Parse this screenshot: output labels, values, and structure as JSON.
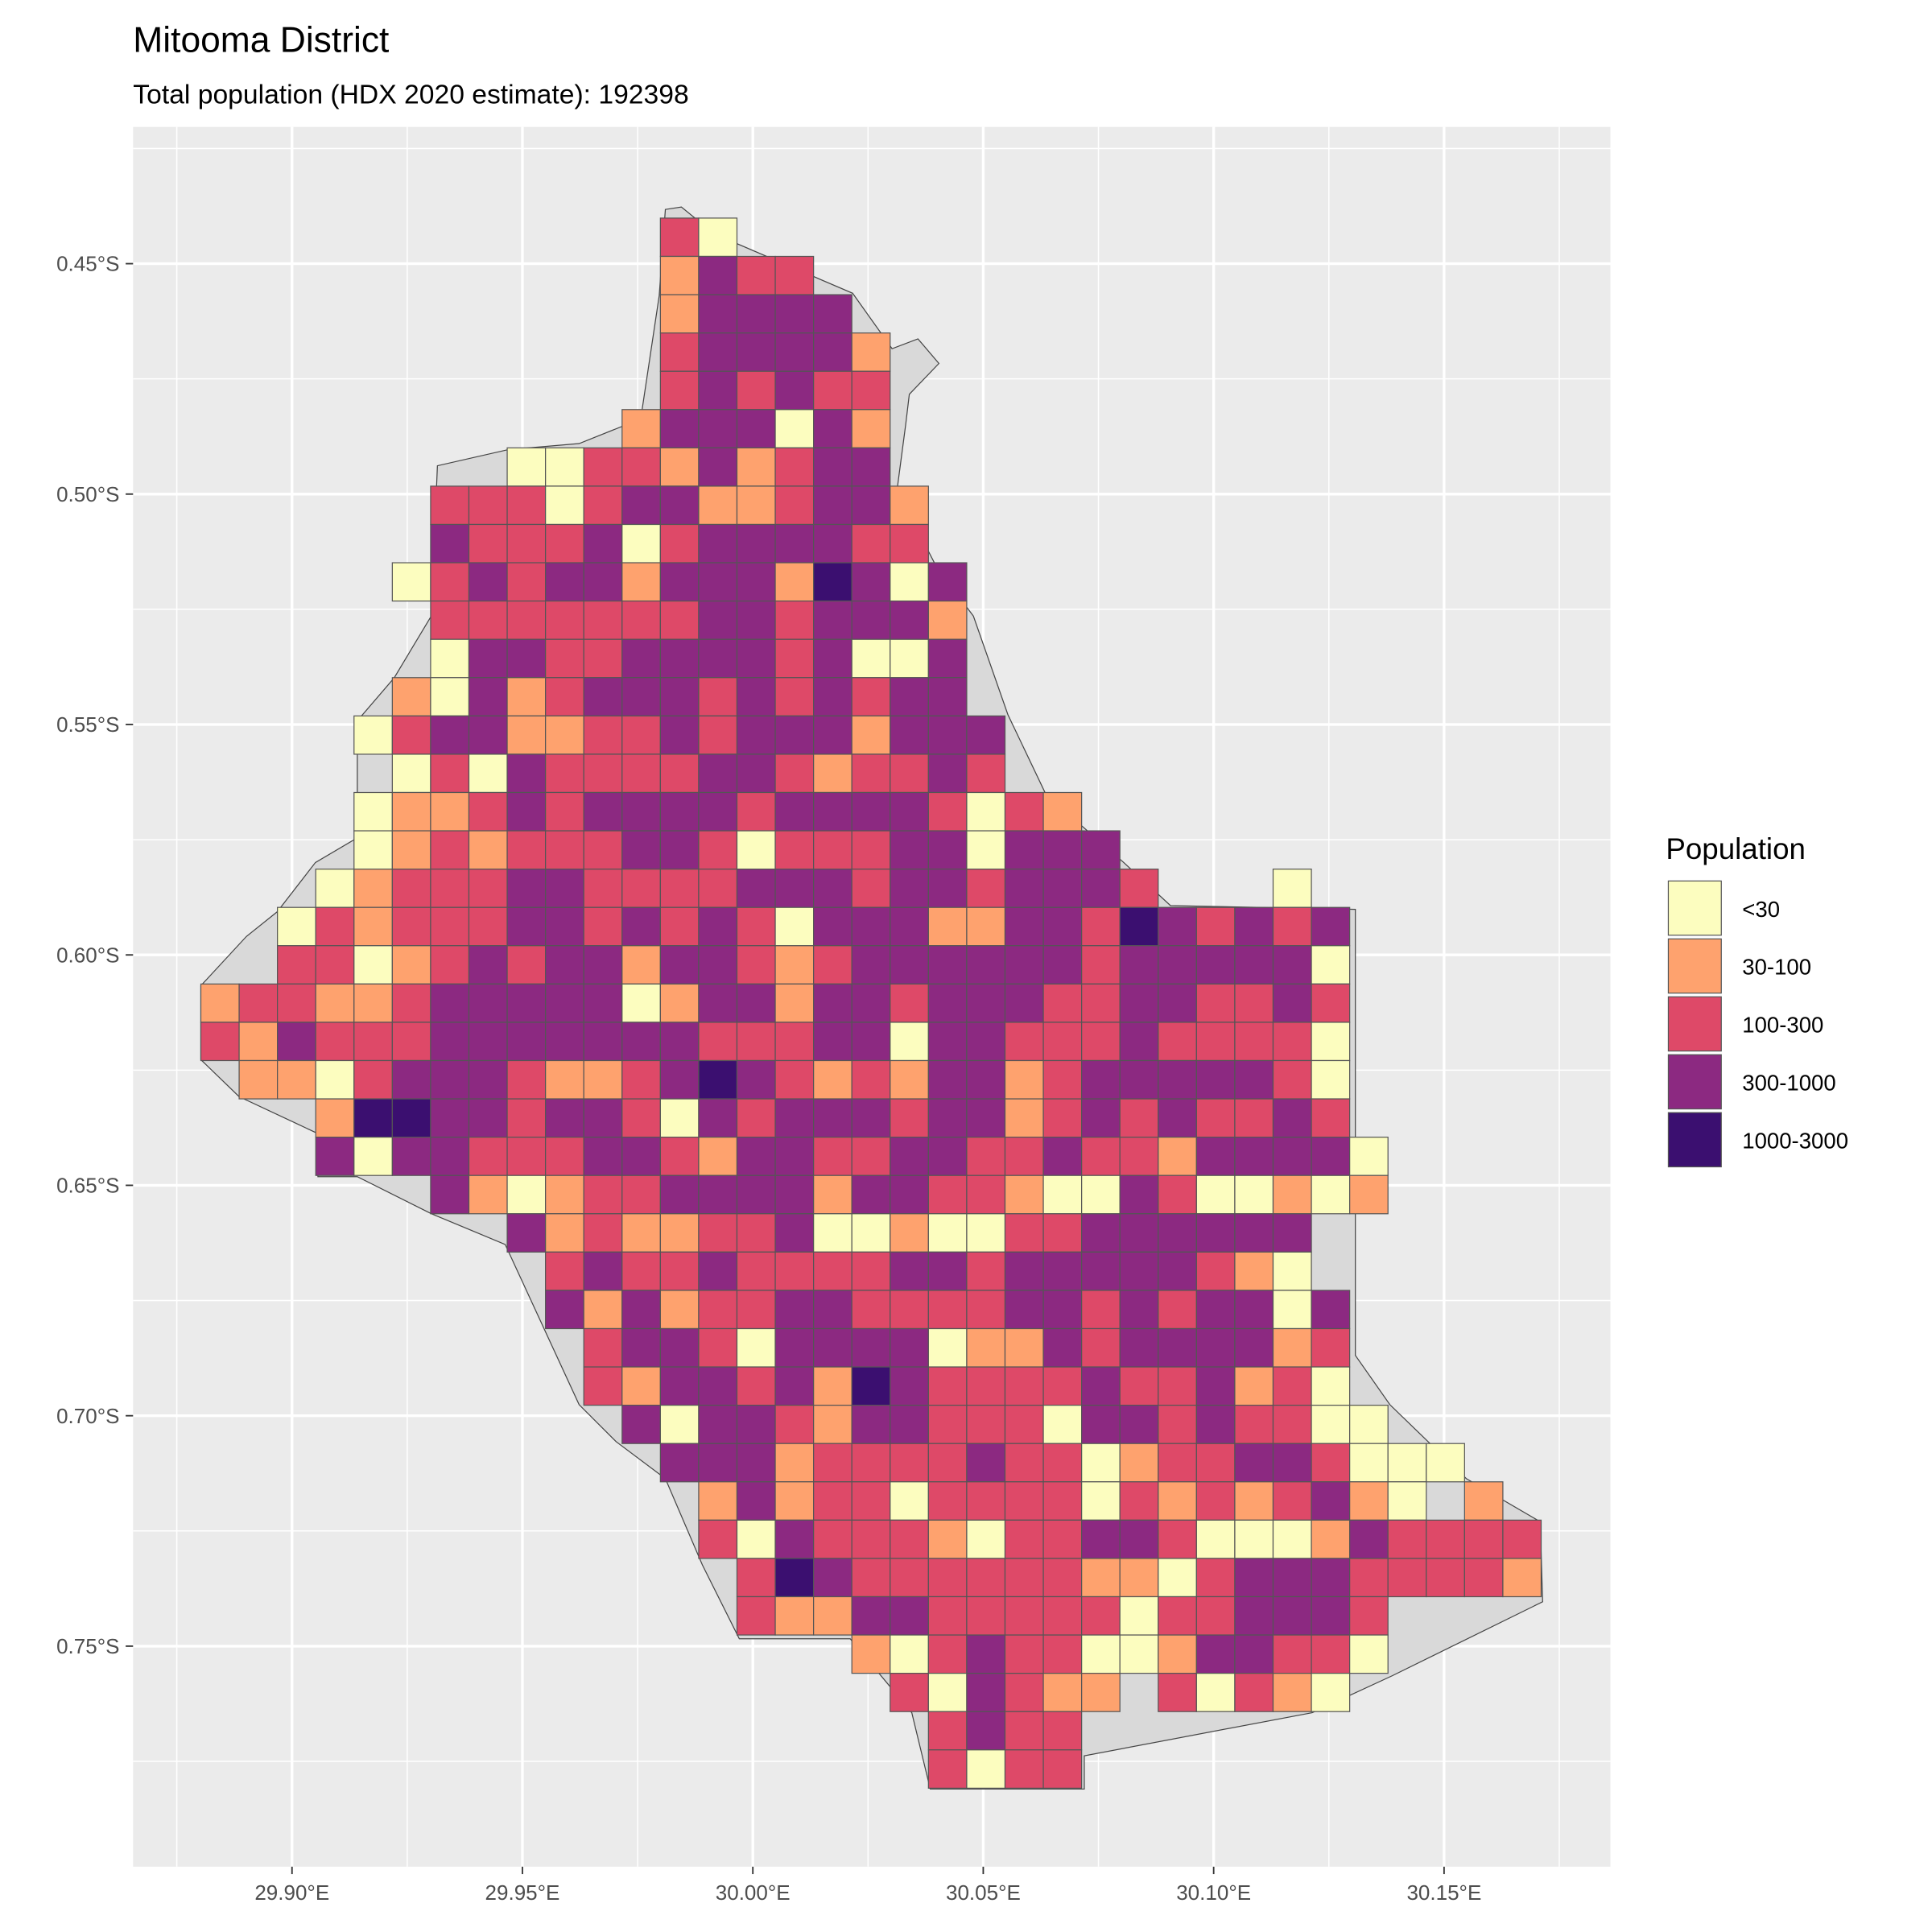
{
  "title": "Mitooma District",
  "subtitle": "Total population (HDX 2020 estimate): 192398",
  "colors": {
    "panel": "#EBEBEB",
    "grid": "#FFFFFF",
    "district": "#D9D9D9",
    "cell_border": "#555555"
  },
  "chart_data": {
    "type": "heatmap",
    "title": "Mitooma District",
    "subtitle": "Total population (HDX 2020 estimate): 192398",
    "x_ticks": [
      "29.90°E",
      "29.95°E",
      "30.00°E",
      "30.05°E",
      "30.10°E",
      "30.15°E"
    ],
    "x_tick_values": [
      29.9,
      29.95,
      30.0,
      30.05,
      30.1,
      30.15
    ],
    "y_ticks": [
      "0.45°S",
      "0.50°S",
      "0.55°S",
      "0.60°S",
      "0.65°S",
      "0.70°S",
      "0.75°S"
    ],
    "y_tick_values": [
      0.45,
      0.5,
      0.55,
      0.6,
      0.65,
      0.7,
      0.75
    ],
    "xlim": [
      29.867,
      30.187
    ],
    "ylim_south": [
      0.423,
      0.801
    ],
    "grid": true,
    "cell_size_deg": 0.008333,
    "grid_origin": {
      "lon": 29.88,
      "lat_south": 0.44
    },
    "legend": {
      "title": "Population",
      "position": "right",
      "classes": [
        {
          "code": "1",
          "label": "<30",
          "color": "#FCFDBF"
        },
        {
          "code": "2",
          "label": "30-100",
          "color": "#FEA26E"
        },
        {
          "code": "3",
          "label": "100-300",
          "color": "#DE4968"
        },
        {
          "code": "4",
          "label": "300-1000",
          "color": "#8C2981"
        },
        {
          "code": "5",
          "label": "1000-3000",
          "color": "#3B0F70"
        }
      ]
    },
    "rows_note": "each row: [start column index, class codes per cell, '.' = no cell]",
    "rows": [
      [
        12,
        "31"
      ],
      [
        12,
        "2433"
      ],
      [
        12,
        "24444"
      ],
      [
        12,
        "344442"
      ],
      [
        12,
        "343433"
      ],
      [
        11,
        "2444142"
      ],
      [
        8,
        "1133242344"
      ],
      [
        6,
        "3331344223442"
      ],
      [
        6,
        "4333413444433"
      ],
      [
        5,
        "134344244425414"
      ],
      [
        6,
        "33333334434442"
      ],
      [
        6,
        "14433444434114"
      ],
      [
        5,
        "214234443434344"
      ],
      [
        4,
        "13442233434442444"
      ],
      [
        5,
        "1314333344323343"
      ],
      [
        4,
        "1223434444344443132"
      ],
      [
        4,
        "12323334431333441444"
      ],
      [
        3,
        "1233344333344434434443...1"
      ],
      [
        2,
        "1323334434343144422443543434"
      ],
      [
        2,
        "3312343442443234444443444441"
      ],
      [
        0,
        "233223444441244244344433443343"
      ],
      [
        0,
        "324333444444433344144333433331"
      ],
      [
        1,
        "22134443223454323244234444431"
      ],
      [
        3,
        "255443443143444344234343343"
      ],
      [
        3,
        "4144333443244334433433244441"
      ],
      [
        6,
        "4212334444244332114311212"
      ],
      [
        8,
        "423223341121133444444"
      ],
      [
        9,
        "34334333344344444321"
      ],
      [
        9,
        "424233443333443434414"
      ],
      [
        10,
        "34431444412243444423"
      ],
      [
        10,
        "32443425433334334231"
      ],
      [
        11,
        "41443244333144343311"
      ],
      [
        12,
        "444233334331233443111"
      ],
      [
        13,
        "2423313333132323421.2"
      ],
      [
        13,
        "3143332133443111243333"
      ],
      [
        14,
        "354333333221344433332"
      ],
      [
        14,
        "32244333331334443"
      ],
      [
        17,
        "21343311244331"
      ],
      [
        18,
        "314322.31321"
      ],
      [
        19,
        "3433"
      ],
      [
        19,
        "3133"
      ]
    ]
  }
}
